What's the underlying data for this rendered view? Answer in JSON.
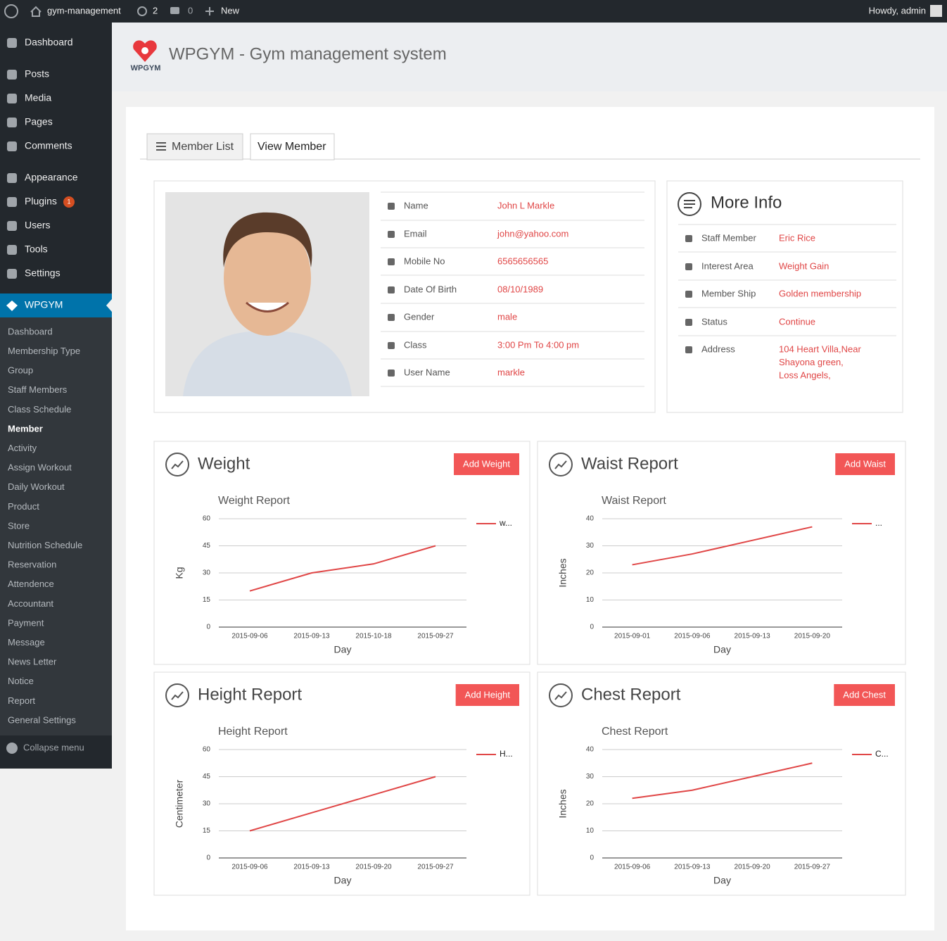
{
  "admin_bar": {
    "site_name": "gym-management",
    "updates": "2",
    "comments": "0",
    "new": "New",
    "howdy": "Howdy, admin"
  },
  "sidebar": {
    "menu": [
      "Dashboard",
      "Posts",
      "Media",
      "Pages",
      "Comments",
      "Appearance",
      "Plugins",
      "Users",
      "Tools",
      "Settings"
    ],
    "plugins_badge": "1",
    "plugin": "WPGYM",
    "submenu": [
      "Dashboard",
      "Membership Type",
      "Group",
      "Staff Members",
      "Class Schedule",
      "Member",
      "Activity",
      "Assign Workout",
      "Daily Workout",
      "Product",
      "Store",
      "Nutrition Schedule",
      "Reservation",
      "Attendence",
      "Accountant",
      "Payment",
      "Message",
      "News Letter",
      "Notice",
      "Report",
      "General Settings"
    ],
    "collapse": "Collapse menu"
  },
  "header": {
    "logo_text": "WPGYM",
    "title": "WPGYM - Gym management system"
  },
  "tabs": [
    "Member List",
    "View Member"
  ],
  "member": [
    {
      "label": "Name",
      "value": "John L Markle"
    },
    {
      "label": "Email",
      "value": "john@yahoo.com"
    },
    {
      "label": "Mobile No",
      "value": "6565656565"
    },
    {
      "label": "Date Of Birth",
      "value": "08/10/1989"
    },
    {
      "label": "Gender",
      "value": "male"
    },
    {
      "label": "Class",
      "value": "3:00 Pm To 4:00 pm"
    },
    {
      "label": "User Name",
      "value": "markle"
    }
  ],
  "more_info": {
    "title": "More Info",
    "rows": [
      {
        "label": "Staff Member",
        "value": [
          "Eric Rice"
        ]
      },
      {
        "label": "Interest Area",
        "value": [
          "Weight Gain"
        ]
      },
      {
        "label": "Member Ship",
        "value": [
          "Golden membership"
        ]
      },
      {
        "label": "Status",
        "value": [
          "Continue"
        ]
      },
      {
        "label": "Address",
        "value": [
          "104 Heart Villa,Near",
          "Shayona green,",
          "Loss Angels,"
        ]
      }
    ]
  },
  "chart_data": [
    {
      "type": "line",
      "panel_title": "Weight",
      "button": "Add Weight",
      "title": "Weight Report",
      "y_label": "Kg",
      "x_label": "Day",
      "categories": [
        "2015-09-06",
        "2015-09-13",
        "2015-10-18",
        "2015-09-27"
      ],
      "series": [
        {
          "name": "w...",
          "color": "#e04646",
          "values": [
            20,
            30,
            35,
            45
          ]
        }
      ],
      "ylim": [
        0,
        60
      ],
      "yticks": [
        0,
        15,
        30,
        45,
        60
      ],
      "grid": true
    },
    {
      "type": "line",
      "panel_title": "Waist Report",
      "button": "Add Waist",
      "title": "Waist Report",
      "y_label": "Inches",
      "x_label": "Day",
      "categories": [
        "2015-09-01",
        "2015-09-06",
        "2015-09-13",
        "2015-09-20"
      ],
      "series": [
        {
          "name": "...",
          "color": "#e04646",
          "values": [
            23,
            27,
            32,
            37
          ]
        }
      ],
      "ylim": [
        0,
        40
      ],
      "yticks": [
        0,
        10,
        20,
        30,
        40
      ],
      "grid": true
    },
    {
      "type": "line",
      "panel_title": "Height Report",
      "button": "Add Height",
      "title": "Height Report",
      "y_label": "Centimeter",
      "x_label": "Day",
      "categories": [
        "2015-09-06",
        "2015-09-13",
        "2015-09-20",
        "2015-09-27"
      ],
      "series": [
        {
          "name": "H...",
          "color": "#e04646",
          "values": [
            15,
            25,
            35,
            45
          ]
        }
      ],
      "ylim": [
        0,
        60
      ],
      "yticks": [
        0,
        15,
        30,
        45,
        60
      ],
      "grid": true
    },
    {
      "type": "line",
      "panel_title": "Chest Report",
      "button": "Add Chest",
      "title": "Chest Report",
      "y_label": "Inches",
      "x_label": "Day",
      "categories": [
        "2015-09-06",
        "2015-09-13",
        "2015-09-20",
        "2015-09-27"
      ],
      "series": [
        {
          "name": "C...",
          "color": "#e04646",
          "values": [
            22,
            25,
            30,
            35
          ]
        }
      ],
      "ylim": [
        0,
        40
      ],
      "yticks": [
        0,
        10,
        20,
        30,
        40
      ],
      "grid": true
    }
  ]
}
